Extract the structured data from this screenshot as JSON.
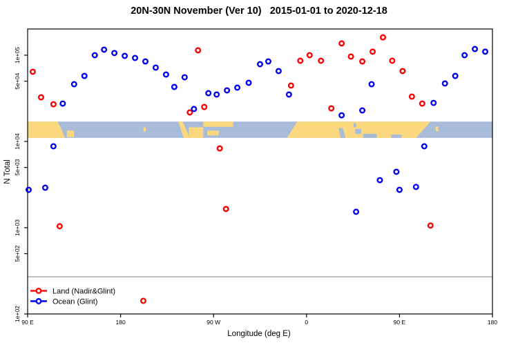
{
  "title": "20N-30N November (Ver 10)   2015-01-01 to 2020-12-18",
  "axes": {
    "x_label": "Longitude (deg E)",
    "y_label": "N Total"
  },
  "legend": {
    "items": [
      {
        "label": "Land (Nadir&Glint)",
        "color": "#ff0000"
      },
      {
        "label": "Ocean (Glint)",
        "color": "#0000ee"
      }
    ]
  },
  "colors": {
    "land_series": "#ff0000",
    "ocean_series": "#0000ee",
    "map_land": "#fbd87e",
    "map_ocean": "#a8bcda",
    "ref_line": "#808080",
    "axis": "#000000"
  },
  "chart_data": {
    "type": "scatter",
    "title": "20N-30N November (Ver 10)   2015-01-01 to 2020-12-18",
    "xlabel": "Longitude (deg E)",
    "ylabel": "N Total",
    "y_scale": "log",
    "x_axis_note": "axis spans 450 degrees of longitude beginning at 90E; t = degrees east of 90E",
    "x_ticks": [
      {
        "t": 0,
        "label": "90 E"
      },
      {
        "t": 90,
        "label": "180"
      },
      {
        "t": 180,
        "label": "90 W"
      },
      {
        "t": 270,
        "label": "0"
      },
      {
        "t": 360,
        "label": "90 E"
      },
      {
        "t": 450,
        "label": "180"
      }
    ],
    "y_ticks": [
      {
        "n": 100000,
        "label": "1e+05"
      },
      {
        "n": 50000,
        "label": "5e+04"
      },
      {
        "n": 10000,
        "label": "1e+04"
      },
      {
        "n": 5000,
        "label": "5e+03"
      },
      {
        "n": 1000,
        "label": "1e+03"
      },
      {
        "n": 500,
        "label": "5e+02"
      },
      {
        "n": 100,
        "label": "1e+02"
      }
    ],
    "ref_line_n": 270,
    "series": [
      {
        "name": "Land (Nadir&Glint)",
        "color": "#ff0000",
        "points": [
          [
            5,
            64300
          ],
          [
            13,
            32500
          ],
          [
            25,
            27000
          ],
          [
            31,
            1040
          ],
          [
            112,
            142
          ],
          [
            157,
            21700
          ],
          [
            165,
            114000
          ],
          [
            171,
            25100
          ],
          [
            186,
            8300
          ],
          [
            192,
            1650
          ],
          [
            255,
            44500
          ],
          [
            264,
            86300
          ],
          [
            273,
            100000
          ],
          [
            284,
            86300
          ],
          [
            294,
            24200
          ],
          [
            304,
            137000
          ],
          [
            313,
            96400
          ],
          [
            324,
            84700
          ],
          [
            334,
            110000
          ],
          [
            344,
            161000
          ],
          [
            353,
            86300
          ],
          [
            363,
            65500
          ],
          [
            372,
            33100
          ],
          [
            382,
            27500
          ],
          [
            390,
            1060
          ]
        ]
      },
      {
        "name": "Ocean (Glint)",
        "color": "#0000ee",
        "points": [
          [
            1,
            2750
          ],
          [
            17,
            2910
          ],
          [
            25,
            8790
          ],
          [
            34,
            27500
          ],
          [
            45,
            46100
          ],
          [
            55,
            57500
          ],
          [
            65,
            100000
          ],
          [
            74,
            116000
          ],
          [
            84,
            106000
          ],
          [
            94,
            98200
          ],
          [
            104,
            92900
          ],
          [
            114,
            84700
          ],
          [
            124,
            71800
          ],
          [
            134,
            59700
          ],
          [
            142,
            42900
          ],
          [
            152,
            55500
          ],
          [
            161,
            23800
          ],
          [
            175,
            36300
          ],
          [
            183,
            35000
          ],
          [
            193,
            39100
          ],
          [
            203,
            42100
          ],
          [
            214,
            47900
          ],
          [
            225,
            78700
          ],
          [
            233,
            84700
          ],
          [
            243,
            65500
          ],
          [
            253,
            35000
          ],
          [
            304,
            20100
          ],
          [
            318,
            1530
          ],
          [
            324,
            22900
          ],
          [
            333,
            46100
          ],
          [
            341,
            3560
          ],
          [
            357,
            4450
          ],
          [
            360,
            2750
          ],
          [
            376,
            2970
          ],
          [
            384,
            8790
          ],
          [
            393,
            28000
          ],
          [
            404,
            47000
          ],
          [
            414,
            57500
          ],
          [
            423,
            100000
          ],
          [
            433,
            118000
          ],
          [
            443,
            110000
          ]
        ]
      }
    ],
    "map_band": {
      "description": "world-map strip of the 20N-30N latitude band",
      "n_top": 17000,
      "n_bottom": 11000,
      "ocean_color": "#a8bcda",
      "land_color": "#fbd87e",
      "land_shapes": [
        {
          "name": "asia-west-copy",
          "poly": [
            [
              0,
              0
            ],
            [
              29,
              0
            ],
            [
              33,
              0.5
            ],
            [
              36,
              1
            ],
            [
              0,
              1
            ]
          ]
        },
        {
          "name": "ryukyu-islands",
          "poly": [
            [
              38,
              0.55
            ],
            [
              45,
              0.55
            ],
            [
              45,
              0.95
            ],
            [
              38,
              0.95
            ]
          ]
        },
        {
          "name": "hawaii",
          "poly": [
            [
              112,
              0.35
            ],
            [
              114.5,
              0.35
            ],
            [
              114.5,
              0.6
            ],
            [
              112,
              0.6
            ]
          ]
        },
        {
          "name": "baja-mexico-coast",
          "poly": [
            [
              146,
              0
            ],
            [
              150,
              0
            ],
            [
              156,
              0.85
            ],
            [
              156,
              1
            ],
            [
              151,
              1
            ]
          ]
        },
        {
          "name": "mexico-mainland",
          "poly": [
            [
              156,
              0.35
            ],
            [
              170,
              0.35
            ],
            [
              170,
              1
            ],
            [
              156,
              1
            ]
          ]
        },
        {
          "name": "gulf-coast-north",
          "poly": [
            [
              170,
              0
            ],
            [
              199,
              0
            ],
            [
              199,
              0.32
            ],
            [
              170,
              0.32
            ]
          ]
        },
        {
          "name": "cuba-yucatan",
          "poly": [
            [
              174,
              0.55
            ],
            [
              185,
              0.55
            ],
            [
              185,
              0.85
            ],
            [
              174,
              0.85
            ]
          ]
        },
        {
          "name": "africa-asia",
          "poly": [
            [
              261,
              0
            ],
            [
              390,
              0
            ],
            [
              376,
              1
            ],
            [
              251,
              1
            ]
          ]
        },
        {
          "name": "taiwan",
          "poly": [
            [
              395,
              0.3
            ],
            [
              397.5,
              0.3
            ],
            [
              397.5,
              0.6
            ],
            [
              395,
              0.6
            ]
          ]
        }
      ],
      "water_notches": [
        {
          "name": "red-sea",
          "poly": [
            [
              301,
              0.4
            ],
            [
              305,
              0.4
            ],
            [
              308,
              1
            ],
            [
              303,
              1
            ]
          ]
        },
        {
          "name": "mediterranean-edge",
          "poly": [
            [
              315.5,
              0.1
            ],
            [
              318,
              0.1
            ],
            [
              318,
              0.35
            ],
            [
              315.5,
              0.35
            ]
          ]
        },
        {
          "name": "persian-gulf",
          "poly": [
            [
              317,
              0.45
            ],
            [
              323,
              0.45
            ],
            [
              323,
              0.75
            ],
            [
              317,
              0.75
            ]
          ]
        },
        {
          "name": "gulf-of-oman",
          "poly": [
            [
              325,
              0.75
            ],
            [
              338,
              0.75
            ],
            [
              338,
              1
            ],
            [
              325,
              1
            ]
          ]
        },
        {
          "name": "bay-of-bengal",
          "poly": [
            [
              352,
              0.8
            ],
            [
              362,
              0.8
            ],
            [
              362,
              1
            ],
            [
              352,
              1
            ]
          ]
        }
      ]
    }
  }
}
